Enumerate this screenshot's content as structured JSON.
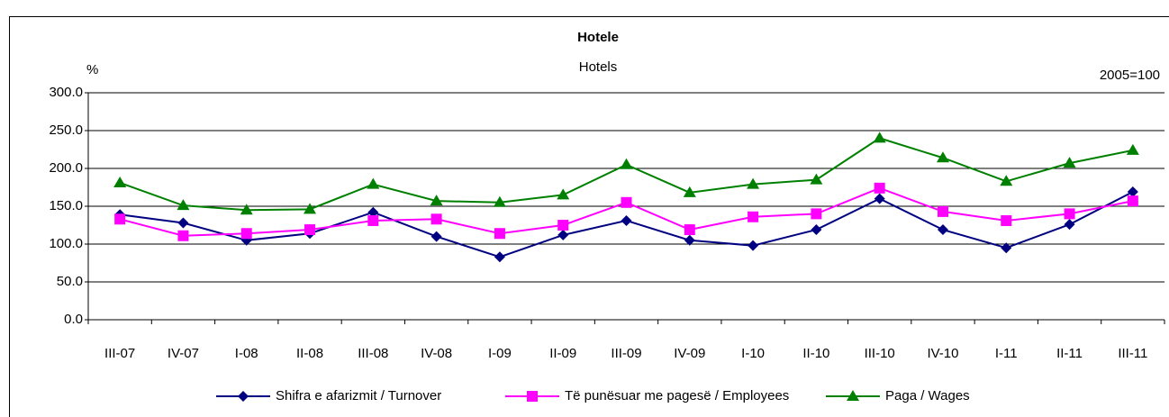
{
  "chart_data": {
    "type": "line",
    "title": "Hotele",
    "subtitle": "Hotels",
    "y_label": "%",
    "annotation": "2005=100",
    "categories": [
      "III-07",
      "IV-07",
      "I-08",
      "II-08",
      "III-08",
      "IV-08",
      "I-09",
      "II-09",
      "III-09",
      "IV-09",
      "I-10",
      "II-10",
      "III-10",
      "IV-10",
      "I-11",
      "II-11",
      "III-11"
    ],
    "series": [
      {
        "name": "Shifra e afarizmit / Turnover",
        "color": "#000080",
        "marker": "diamond",
        "values": [
          139,
          128,
          105,
          114,
          142,
          110,
          83,
          112,
          131,
          105,
          98,
          119,
          160,
          119,
          95,
          126,
          169
        ]
      },
      {
        "name": "Të punësuar me pagesë / Employees",
        "color": "#ff00ff",
        "marker": "square",
        "values": [
          133,
          111,
          114,
          119,
          131,
          133,
          114,
          125,
          155,
          119,
          136,
          140,
          174,
          143,
          131,
          140,
          157
        ]
      },
      {
        "name": "Paga / Wages",
        "color": "#008000",
        "marker": "triangle",
        "values": [
          181,
          151,
          145,
          146,
          179,
          157,
          155,
          165,
          205,
          168,
          179,
          185,
          240,
          214,
          183,
          207,
          224
        ]
      }
    ],
    "ylim": [
      0,
      300
    ],
    "yticks": [
      {
        "value": 0,
        "label": "0.0"
      },
      {
        "value": 50,
        "label": "50.0"
      },
      {
        "value": 100,
        "label": "100.0"
      },
      {
        "value": 150,
        "label": "150.0"
      },
      {
        "value": 200,
        "label": "200.0"
      },
      {
        "value": 250,
        "label": "250.0"
      },
      {
        "value": 300,
        "label": "300.0"
      }
    ],
    "grid": true,
    "legend": "bottom"
  }
}
